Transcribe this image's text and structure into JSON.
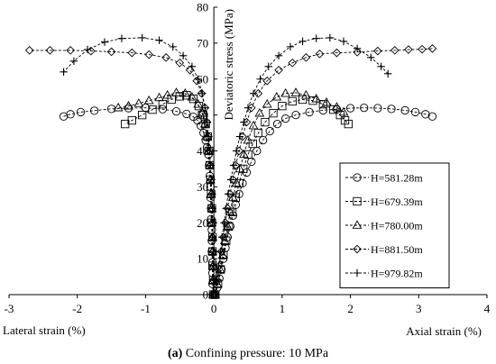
{
  "chart_data": {
    "type": "scatter",
    "xlabel_left": "Lateral strain (%)",
    "xlabel_right": "Axial strain (%)",
    "ylabel": "Deviatoric stress (MPa)",
    "xlim": [
      -3,
      4
    ],
    "ylim": [
      0,
      80
    ],
    "x_ticks": [
      "-3",
      "-2",
      "-1",
      "0",
      "1",
      "2",
      "3",
      "4"
    ],
    "y_ticks": [
      "0",
      "10",
      "20",
      "30",
      "40",
      "50",
      "60",
      "70",
      "80"
    ],
    "legend_position": "right",
    "series": [
      {
        "name": "H=581.28m",
        "marker": "circle",
        "axial": [
          [
            0.02,
            0
          ],
          [
            0.05,
            2
          ],
          [
            0.08,
            4.5
          ],
          [
            0.11,
            7
          ],
          [
            0.14,
            10
          ],
          [
            0.17,
            13
          ],
          [
            0.2,
            16
          ],
          [
            0.24,
            19
          ],
          [
            0.28,
            22
          ],
          [
            0.32,
            25
          ],
          [
            0.37,
            28
          ],
          [
            0.42,
            31
          ],
          [
            0.48,
            34
          ],
          [
            0.55,
            37
          ],
          [
            0.63,
            40
          ],
          [
            0.72,
            43
          ],
          [
            0.82,
            45.5
          ],
          [
            0.93,
            47.5
          ],
          [
            1.05,
            49
          ],
          [
            1.2,
            50
          ],
          [
            1.4,
            50.8
          ],
          [
            1.6,
            51.3
          ],
          [
            1.8,
            51.6
          ],
          [
            2.0,
            51.9
          ],
          [
            2.2,
            52
          ],
          [
            2.4,
            51.9
          ],
          [
            2.6,
            51.7
          ],
          [
            2.8,
            51.3
          ],
          [
            2.95,
            50.8
          ],
          [
            3.1,
            50.2
          ],
          [
            3.2,
            49.6
          ]
        ],
        "lateral": [
          [
            -0.01,
            0
          ],
          [
            -0.02,
            3
          ],
          [
            -0.02,
            6
          ],
          [
            -0.02,
            9
          ],
          [
            -0.03,
            12
          ],
          [
            -0.03,
            15
          ],
          [
            -0.03,
            18
          ],
          [
            -0.04,
            21
          ],
          [
            -0.04,
            24
          ],
          [
            -0.05,
            27
          ],
          [
            -0.05,
            30
          ],
          [
            -0.06,
            33
          ],
          [
            -0.07,
            36
          ],
          [
            -0.08,
            39
          ],
          [
            -0.1,
            41
          ],
          [
            -0.12,
            43
          ],
          [
            -0.15,
            45
          ],
          [
            -0.19,
            47
          ],
          [
            -0.24,
            48.5
          ],
          [
            -0.3,
            49.5
          ],
          [
            -0.4,
            50.3
          ],
          [
            -0.55,
            51
          ],
          [
            -0.75,
            51.6
          ],
          [
            -1.0,
            52
          ],
          [
            -1.25,
            51.9
          ],
          [
            -1.5,
            51.7
          ],
          [
            -1.75,
            51.2
          ],
          [
            -1.95,
            50.8
          ],
          [
            -2.1,
            50.2
          ],
          [
            -2.2,
            49.6
          ]
        ]
      },
      {
        "name": "H=679.39m",
        "marker": "square",
        "axial": [
          [
            0.02,
            0
          ],
          [
            0.06,
            3
          ],
          [
            0.1,
            7
          ],
          [
            0.14,
            11
          ],
          [
            0.18,
            15
          ],
          [
            0.22,
            19
          ],
          [
            0.27,
            23
          ],
          [
            0.32,
            27
          ],
          [
            0.37,
            31
          ],
          [
            0.43,
            35
          ],
          [
            0.5,
            39
          ],
          [
            0.57,
            42
          ],
          [
            0.65,
            45
          ],
          [
            0.75,
            48
          ],
          [
            0.87,
            50.5
          ],
          [
            1.0,
            52.5
          ],
          [
            1.15,
            53.8
          ],
          [
            1.3,
            54.3
          ],
          [
            1.45,
            54
          ],
          [
            1.6,
            53
          ],
          [
            1.75,
            51.5
          ],
          [
            1.85,
            50
          ],
          [
            1.92,
            48.5
          ],
          [
            1.97,
            47.5
          ]
        ],
        "lateral": [
          [
            -0.01,
            0
          ],
          [
            -0.01,
            4
          ],
          [
            -0.02,
            8
          ],
          [
            -0.02,
            12
          ],
          [
            -0.02,
            16
          ],
          [
            -0.03,
            20
          ],
          [
            -0.03,
            24
          ],
          [
            -0.04,
            28
          ],
          [
            -0.05,
            32
          ],
          [
            -0.06,
            36
          ],
          [
            -0.07,
            40
          ],
          [
            -0.09,
            44
          ],
          [
            -0.12,
            47.5
          ],
          [
            -0.16,
            50
          ],
          [
            -0.22,
            52.5
          ],
          [
            -0.3,
            54.5
          ],
          [
            -0.4,
            55.5
          ],
          [
            -0.5,
            55.2
          ],
          [
            -0.62,
            54.3
          ],
          [
            -0.75,
            53
          ],
          [
            -0.9,
            51.5
          ],
          [
            -1.05,
            50
          ],
          [
            -1.2,
            48.5
          ],
          [
            -1.3,
            47.5
          ]
        ]
      },
      {
        "name": "H=780.00m",
        "marker": "triangle",
        "axial": [
          [
            0.02,
            0
          ],
          [
            0.05,
            3
          ],
          [
            0.09,
            7
          ],
          [
            0.13,
            11
          ],
          [
            0.16,
            15
          ],
          [
            0.2,
            19
          ],
          [
            0.24,
            23
          ],
          [
            0.28,
            27
          ],
          [
            0.33,
            31
          ],
          [
            0.38,
            35
          ],
          [
            0.44,
            39
          ],
          [
            0.5,
            43
          ],
          [
            0.58,
            47
          ],
          [
            0.67,
            50.5
          ],
          [
            0.78,
            53
          ],
          [
            0.92,
            55
          ],
          [
            1.05,
            56
          ],
          [
            1.2,
            56.2
          ],
          [
            1.35,
            55.5
          ],
          [
            1.5,
            54.5
          ],
          [
            1.65,
            53.5
          ],
          [
            1.8,
            52.2
          ],
          [
            1.9,
            50.8
          ]
        ],
        "lateral": [
          [
            -0.01,
            0
          ],
          [
            -0.01,
            4
          ],
          [
            -0.01,
            8
          ],
          [
            -0.02,
            12
          ],
          [
            -0.02,
            16
          ],
          [
            -0.03,
            20
          ],
          [
            -0.03,
            24
          ],
          [
            -0.04,
            28
          ],
          [
            -0.05,
            32
          ],
          [
            -0.06,
            36
          ],
          [
            -0.08,
            40
          ],
          [
            -0.1,
            44
          ],
          [
            -0.13,
            47.5
          ],
          [
            -0.17,
            50.5
          ],
          [
            -0.23,
            53
          ],
          [
            -0.32,
            55
          ],
          [
            -0.42,
            56
          ],
          [
            -0.55,
            56.2
          ],
          [
            -0.68,
            55.5
          ],
          [
            -0.8,
            54.8
          ],
          [
            -0.95,
            54
          ],
          [
            -1.1,
            53.2
          ],
          [
            -1.25,
            52.5
          ],
          [
            -1.4,
            52
          ]
        ]
      },
      {
        "name": "H=881.50m",
        "marker": "diamond",
        "axial": [
          [
            0.02,
            0
          ],
          [
            0.05,
            4
          ],
          [
            0.08,
            8
          ],
          [
            0.11,
            12
          ],
          [
            0.14,
            16
          ],
          [
            0.17,
            20
          ],
          [
            0.2,
            24
          ],
          [
            0.24,
            28
          ],
          [
            0.28,
            32
          ],
          [
            0.32,
            36
          ],
          [
            0.37,
            40
          ],
          [
            0.42,
            44
          ],
          [
            0.48,
            48
          ],
          [
            0.55,
            52
          ],
          [
            0.65,
            56
          ],
          [
            0.78,
            59.5
          ],
          [
            0.95,
            62.5
          ],
          [
            1.15,
            64.5
          ],
          [
            1.35,
            66
          ],
          [
            1.55,
            67
          ],
          [
            1.8,
            67.3
          ],
          [
            2.1,
            67.5
          ],
          [
            2.4,
            67.8
          ],
          [
            2.65,
            68
          ],
          [
            2.85,
            68.2
          ],
          [
            3.05,
            68.3
          ],
          [
            3.2,
            68.5
          ]
        ],
        "lateral": [
          [
            -0.01,
            0
          ],
          [
            -0.01,
            4
          ],
          [
            -0.01,
            8
          ],
          [
            -0.01,
            12
          ],
          [
            -0.02,
            16
          ],
          [
            -0.02,
            20
          ],
          [
            -0.03,
            24
          ],
          [
            -0.03,
            28
          ],
          [
            -0.04,
            32
          ],
          [
            -0.05,
            36
          ],
          [
            -0.06,
            40
          ],
          [
            -0.08,
            44
          ],
          [
            -0.1,
            48
          ],
          [
            -0.13,
            52
          ],
          [
            -0.18,
            56
          ],
          [
            -0.25,
            59.5
          ],
          [
            -0.35,
            62.5
          ],
          [
            -0.5,
            64.5
          ],
          [
            -0.7,
            66
          ],
          [
            -0.95,
            66.8
          ],
          [
            -1.2,
            67.3
          ],
          [
            -1.5,
            67.6
          ],
          [
            -1.8,
            67.8
          ],
          [
            -2.1,
            68
          ],
          [
            -2.4,
            68
          ],
          [
            -2.7,
            68
          ]
        ]
      },
      {
        "name": "H=979.82m",
        "marker": "plus",
        "axial": [
          [
            0.02,
            0
          ],
          [
            0.04,
            4
          ],
          [
            0.07,
            8
          ],
          [
            0.1,
            12
          ],
          [
            0.12,
            16
          ],
          [
            0.15,
            20
          ],
          [
            0.18,
            24
          ],
          [
            0.21,
            28
          ],
          [
            0.25,
            32
          ],
          [
            0.29,
            36
          ],
          [
            0.33,
            40
          ],
          [
            0.38,
            44
          ],
          [
            0.44,
            48
          ],
          [
            0.5,
            52
          ],
          [
            0.58,
            56
          ],
          [
            0.68,
            60
          ],
          [
            0.8,
            63.5
          ],
          [
            0.95,
            66.5
          ],
          [
            1.12,
            69
          ],
          [
            1.3,
            70.5
          ],
          [
            1.5,
            71.3
          ],
          [
            1.7,
            71.5
          ],
          [
            1.9,
            70.5
          ],
          [
            2.1,
            68.5
          ],
          [
            2.3,
            66
          ],
          [
            2.45,
            63.5
          ],
          [
            2.55,
            61.5
          ]
        ],
        "lateral": [
          [
            -0.01,
            0
          ],
          [
            -0.01,
            4
          ],
          [
            -0.01,
            8
          ],
          [
            -0.01,
            12
          ],
          [
            -0.02,
            16
          ],
          [
            -0.02,
            20
          ],
          [
            -0.02,
            24
          ],
          [
            -0.03,
            28
          ],
          [
            -0.04,
            32
          ],
          [
            -0.05,
            36
          ],
          [
            -0.06,
            40
          ],
          [
            -0.08,
            44
          ],
          [
            -0.1,
            48
          ],
          [
            -0.13,
            52
          ],
          [
            -0.17,
            56
          ],
          [
            -0.23,
            60
          ],
          [
            -0.32,
            63.5
          ],
          [
            -0.45,
            66.5
          ],
          [
            -0.6,
            69
          ],
          [
            -0.8,
            70.8
          ],
          [
            -1.05,
            71.5
          ],
          [
            -1.35,
            71.3
          ],
          [
            -1.6,
            70.3
          ],
          [
            -1.85,
            68.2
          ],
          [
            -2.05,
            65
          ],
          [
            -2.2,
            62
          ]
        ]
      }
    ]
  },
  "caption": {
    "label": "(a)",
    "text": " Confining pressure: 10 MPa"
  }
}
